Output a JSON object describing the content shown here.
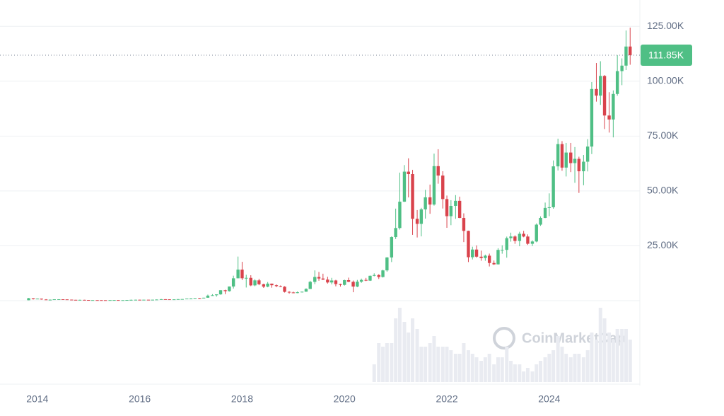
{
  "chart_data": {
    "type": "candlestick",
    "watermark": "CoinMarketCap",
    "up_color": "#4fbf85",
    "down_color": "#d9434c",
    "volume_color": "#e9ebf1",
    "xlim": [
      2013.27,
      2025.77
    ],
    "xticks": [
      2014,
      2016,
      2018,
      2020,
      2022,
      2024
    ],
    "ylim": [
      0,
      137000
    ],
    "yticks": [
      {
        "value": 25000,
        "label": "25.00K"
      },
      {
        "value": 50000,
        "label": "50.00K"
      },
      {
        "value": 75000,
        "label": "75.00K"
      },
      {
        "value": 100000,
        "label": "100.00K"
      },
      {
        "value": 125000,
        "label": "125.00K"
      }
    ],
    "grid": true,
    "last_price": {
      "value": 111850,
      "label": "111.85K"
    },
    "x": [
      2013.83,
      2013.92,
      2014,
      2014.08,
      2014.17,
      2014.25,
      2014.33,
      2014.42,
      2014.5,
      2014.58,
      2014.67,
      2014.75,
      2014.83,
      2014.92,
      2015,
      2015.08,
      2015.17,
      2015.25,
      2015.33,
      2015.42,
      2015.5,
      2015.58,
      2015.67,
      2015.75,
      2015.83,
      2015.92,
      2016,
      2016.08,
      2016.17,
      2016.25,
      2016.33,
      2016.42,
      2016.5,
      2016.58,
      2016.67,
      2016.75,
      2016.83,
      2016.92,
      2017,
      2017.08,
      2017.17,
      2017.25,
      2017.33,
      2017.42,
      2017.5,
      2017.58,
      2017.67,
      2017.75,
      2017.83,
      2017.92,
      2018,
      2018.08,
      2018.17,
      2018.25,
      2018.33,
      2018.42,
      2018.5,
      2018.58,
      2018.67,
      2018.75,
      2018.83,
      2018.92,
      2019,
      2019.08,
      2019.17,
      2019.25,
      2019.33,
      2019.42,
      2019.5,
      2019.58,
      2019.67,
      2019.75,
      2019.83,
      2019.92,
      2020,
      2020.08,
      2020.17,
      2020.25,
      2020.33,
      2020.42,
      2020.5,
      2020.58,
      2020.67,
      2020.75,
      2020.83,
      2020.92,
      2021,
      2021.08,
      2021.17,
      2021.25,
      2021.33,
      2021.42,
      2021.5,
      2021.58,
      2021.67,
      2021.75,
      2021.83,
      2021.92,
      2022,
      2022.08,
      2022.17,
      2022.25,
      2022.33,
      2022.42,
      2022.5,
      2022.58,
      2022.67,
      2022.75,
      2022.83,
      2022.92,
      2023,
      2023.08,
      2023.17,
      2023.25,
      2023.33,
      2023.42,
      2023.5,
      2023.58,
      2023.67,
      2023.75,
      2023.83,
      2023.92,
      2024,
      2024.08,
      2024.17,
      2024.25,
      2024.33,
      2024.42,
      2024.5,
      2024.58,
      2024.67,
      2024.75,
      2024.83,
      2024.92,
      2025,
      2025.08,
      2025.17,
      2025.25,
      2025.33,
      2025.42,
      2025.5,
      2025.58
    ],
    "open": [
      205,
      1130,
      760,
      930,
      550,
      450,
      450,
      630,
      640,
      590,
      480,
      390,
      340,
      380,
      320,
      220,
      255,
      245,
      235,
      230,
      265,
      285,
      230,
      235,
      315,
      378,
      430,
      370,
      440,
      415,
      450,
      530,
      670,
      625,
      575,
      610,
      700,
      745,
      965,
      970,
      1190,
      1080,
      1350,
      2300,
      2480,
      2880,
      4760,
      4340,
      6470,
      10200,
      14150,
      10200,
      10400,
      6970,
      9250,
      7500,
      6400,
      7780,
      7040,
      6630,
      6370,
      4020,
      3740,
      3460,
      3850,
      4100,
      5350,
      8570,
      10800,
      10100,
      9600,
      8300,
      9200,
      7570,
      7190,
      9350,
      8600,
      6440,
      8660,
      9460,
      9140,
      11350,
      11680,
      10780,
      13800,
      19700,
      29000,
      33100,
      45100,
      58800,
      57700,
      37300,
      35000,
      41600,
      47100,
      43800,
      61300,
      57000,
      46300,
      38500,
      43200,
      45500,
      37700,
      31800,
      19800,
      23300,
      20050,
      19430,
      20500,
      17170,
      16550,
      23140,
      23150,
      28480,
      29250,
      27220,
      30480,
      29230,
      25930,
      26970,
      34650,
      37720,
      42270,
      42580,
      61200,
      71330,
      60640,
      67500,
      62680,
      64630,
      58970,
      63330,
      70220,
      96450,
      93430,
      102400,
      84370,
      82550,
      94200,
      104600,
      107100,
      115800
    ],
    "high": [
      1240,
      1160,
      1000,
      940,
      700,
      550,
      630,
      680,
      650,
      600,
      500,
      410,
      460,
      390,
      320,
      260,
      300,
      260,
      250,
      268,
      315,
      285,
      245,
      330,
      500,
      470,
      460,
      445,
      440,
      465,
      550,
      780,
      700,
      630,
      625,
      720,
      755,
      975,
      1150,
      1210,
      1290,
      1350,
      2760,
      2980,
      2920,
      4770,
      4980,
      6470,
      11400,
      20100,
      17700,
      11800,
      11600,
      9800,
      9980,
      7760,
      8500,
      7780,
      7400,
      6940,
      6600,
      4310,
      4110,
      4200,
      4100,
      5640,
      9070,
      13800,
      13100,
      12300,
      10900,
      10400,
      9500,
      7750,
      9570,
      10500,
      9180,
      9460,
      10060,
      10380,
      11440,
      12470,
      12070,
      14100,
      19860,
      29300,
      41950,
      58350,
      61790,
      64860,
      59600,
      41300,
      42300,
      50500,
      52900,
      67000,
      69000,
      59000,
      47900,
      45800,
      48100,
      47400,
      39800,
      31900,
      24600,
      25200,
      22800,
      20990,
      21450,
      18300,
      23900,
      25250,
      29200,
      31000,
      29800,
      31400,
      31800,
      30200,
      27500,
      35200,
      38400,
      44700,
      48900,
      63900,
      73800,
      72700,
      71900,
      71900,
      70000,
      65600,
      66400,
      73600,
      99600,
      108300,
      109100,
      102800,
      95000,
      95800,
      111900,
      110400,
      123100,
      124400
    ],
    "low": [
      205,
      520,
      740,
      450,
      440,
      340,
      440,
      555,
      570,
      440,
      370,
      290,
      320,
      310,
      160,
      210,
      240,
      215,
      225,
      220,
      255,
      200,
      225,
      235,
      300,
      350,
      360,
      370,
      400,
      415,
      440,
      530,
      610,
      535,
      575,
      605,
      690,
      745,
      780,
      960,
      890,
      1060,
      1350,
      2300,
      1850,
      2670,
      2980,
      4150,
      5530,
      10200,
      9400,
      6000,
      6600,
      6580,
      7050,
      5800,
      6100,
      5900,
      6150,
      6200,
      3700,
      3190,
      3400,
      3400,
      3700,
      4080,
      5330,
      7540,
      9070,
      9400,
      7800,
      7450,
      6540,
      6430,
      6870,
      8450,
      3850,
      6150,
      8120,
      8910,
      8990,
      11100,
      9880,
      10540,
      13200,
      17600,
      28100,
      32400,
      45000,
      47050,
      30000,
      28800,
      29300,
      37400,
      39600,
      43300,
      53300,
      42000,
      33200,
      34400,
      37300,
      37600,
      26700,
      17600,
      18800,
      19600,
      18200,
      18200,
      15600,
      16300,
      16500,
      21400,
      19600,
      26900,
      25900,
      24800,
      28900,
      25400,
      24900,
      26600,
      34100,
      37600,
      38500,
      41900,
      59300,
      59200,
      56600,
      58600,
      53700,
      49100,
      52600,
      58900,
      66800,
      90700,
      89200,
      78200,
      76600,
      74400,
      93400,
      98200,
      105100,
      107500
    ],
    "close": [
      1130,
      760,
      930,
      550,
      450,
      450,
      630,
      640,
      590,
      480,
      390,
      340,
      380,
      320,
      220,
      255,
      245,
      235,
      230,
      265,
      285,
      230,
      235,
      315,
      378,
      430,
      370,
      440,
      415,
      450,
      530,
      670,
      625,
      575,
      610,
      700,
      745,
      965,
      970,
      1190,
      1080,
      1350,
      2300,
      2480,
      2880,
      4760,
      4340,
      6470,
      10200,
      14150,
      10200,
      10400,
      6970,
      9250,
      7500,
      6400,
      7780,
      7040,
      6630,
      6370,
      4020,
      3740,
      3460,
      3850,
      4100,
      5350,
      8570,
      10800,
      10100,
      9600,
      8300,
      9200,
      7570,
      7190,
      9350,
      8600,
      6440,
      8660,
      9460,
      9140,
      11350,
      11680,
      10780,
      13800,
      19700,
      29000,
      33100,
      45100,
      58800,
      57700,
      37300,
      35000,
      41600,
      47100,
      43800,
      61300,
      57000,
      46300,
      38500,
      43200,
      45500,
      37700,
      31800,
      19800,
      23300,
      20050,
      19430,
      20500,
      17170,
      16550,
      23140,
      23150,
      28480,
      29250,
      27220,
      30480,
      29230,
      25930,
      26970,
      34650,
      37720,
      42270,
      42580,
      61200,
      71330,
      60640,
      67500,
      62680,
      64630,
      58970,
      63330,
      70220,
      96450,
      93430,
      102400,
      84370,
      82550,
      94200,
      104600,
      107100,
      115800,
      111850
    ],
    "volume": [
      0,
      0,
      0,
      0,
      0,
      0,
      0,
      0,
      0,
      0,
      0,
      0,
      0,
      0,
      0,
      0,
      0,
      0,
      0,
      0,
      0,
      0,
      0,
      0,
      0,
      0,
      0,
      0,
      0,
      0,
      0,
      0,
      0,
      0,
      0,
      0,
      0,
      0,
      0,
      0,
      0,
      0,
      0,
      0,
      0,
      0,
      0,
      0,
      0,
      0,
      0,
      0,
      0,
      0,
      0,
      0,
      0,
      0,
      0,
      0,
      0,
      0,
      0,
      0,
      0,
      0,
      0,
      0,
      0,
      0,
      0,
      0,
      0,
      0,
      0,
      0,
      0,
      0,
      0,
      0,
      0,
      25,
      55,
      50,
      55,
      55,
      90,
      105,
      85,
      70,
      90,
      75,
      50,
      50,
      55,
      65,
      50,
      50,
      50,
      45,
      40,
      40,
      55,
      45,
      40,
      35,
      30,
      35,
      40,
      25,
      35,
      35,
      50,
      30,
      25,
      25,
      15,
      20,
      15,
      25,
      30,
      35,
      40,
      45,
      65,
      50,
      40,
      35,
      40,
      40,
      35,
      45,
      70,
      60,
      105,
      90,
      70,
      60,
      75,
      75,
      75,
      60
    ]
  }
}
